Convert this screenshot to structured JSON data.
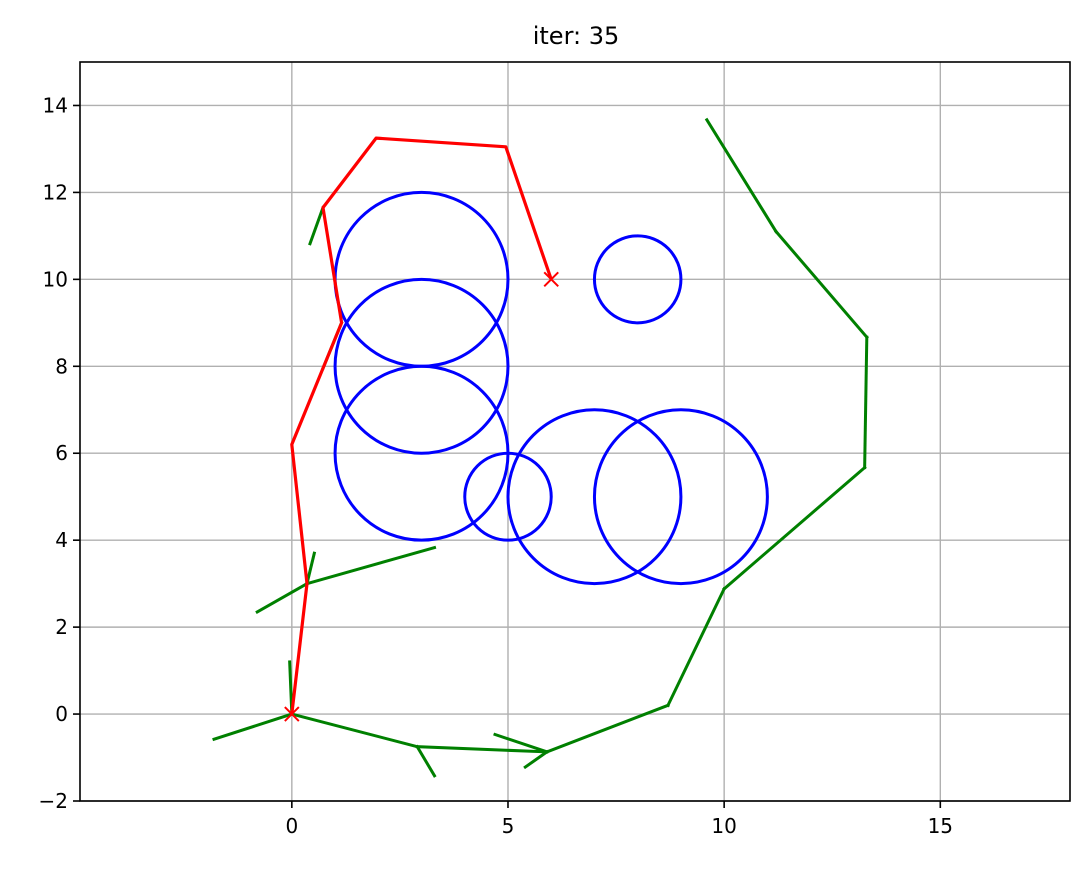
{
  "chart_data": {
    "type": "line",
    "title": "iter: 35",
    "xlabel": "",
    "ylabel": "",
    "xlim": [
      -4.9,
      18
    ],
    "ylim": [
      -2,
      15
    ],
    "xticks": [
      0,
      5,
      10,
      15
    ],
    "yticks": [
      -2,
      0,
      2,
      4,
      6,
      8,
      10,
      12,
      14
    ],
    "grid": true,
    "colors": {
      "obstacle": "#0000ff",
      "tree": "#008000",
      "path": "#ff0000",
      "marker": "#ff0000",
      "grid": "#b0b0b0"
    },
    "obstacles": [
      {
        "cx": 3,
        "cy": 10,
        "r": 2
      },
      {
        "cx": 3,
        "cy": 8,
        "r": 2
      },
      {
        "cx": 3,
        "cy": 6,
        "r": 2
      },
      {
        "cx": 5,
        "cy": 5,
        "r": 1
      },
      {
        "cx": 7,
        "cy": 5,
        "r": 2
      },
      {
        "cx": 9,
        "cy": 5,
        "r": 2
      },
      {
        "cx": 8,
        "cy": 10,
        "r": 1
      }
    ],
    "tree_edges": [
      [
        [
          0,
          0
        ],
        [
          -1.8,
          -0.58
        ]
      ],
      [
        [
          0,
          0
        ],
        [
          -0.05,
          1.2
        ]
      ],
      [
        [
          0,
          0
        ],
        [
          2.9,
          -0.75
        ]
      ],
      [
        [
          2.9,
          -0.75
        ],
        [
          3.3,
          -1.42
        ]
      ],
      [
        [
          2.9,
          -0.75
        ],
        [
          5.9,
          -0.87
        ]
      ],
      [
        [
          5.9,
          -0.87
        ],
        [
          4.7,
          -0.47
        ]
      ],
      [
        [
          5.9,
          -0.87
        ],
        [
          5.4,
          -1.22
        ]
      ],
      [
        [
          5.9,
          -0.87
        ],
        [
          8.7,
          0.2
        ]
      ],
      [
        [
          8.7,
          0.2
        ],
        [
          10,
          2.88
        ]
      ],
      [
        [
          10,
          2.88
        ],
        [
          13.25,
          5.67
        ]
      ],
      [
        [
          13.25,
          5.67
        ],
        [
          13.3,
          8.67
        ]
      ],
      [
        [
          13.3,
          8.67
        ],
        [
          11.2,
          11.1
        ]
      ],
      [
        [
          11.2,
          11.1
        ],
        [
          9.6,
          13.67
        ]
      ],
      [
        [
          0.35,
          3.0
        ],
        [
          -0.8,
          2.35
        ]
      ],
      [
        [
          0.35,
          3.0
        ],
        [
          3.3,
          3.83
        ]
      ],
      [
        [
          0.35,
          3.0
        ],
        [
          0.52,
          3.7
        ]
      ],
      [
        [
          1.15,
          9.0
        ],
        [
          0.72,
          7.95
        ]
      ],
      [
        [
          0.72,
          11.65
        ],
        [
          0.42,
          10.82
        ]
      ]
    ],
    "path": [
      [
        0,
        0
      ],
      [
        0.35,
        3.0
      ],
      [
        0,
        6.2
      ],
      [
        1.15,
        9.0
      ],
      [
        0.72,
        11.65
      ],
      [
        1.95,
        13.25
      ],
      [
        4.95,
        13.05
      ],
      [
        6,
        10
      ]
    ],
    "markers": [
      {
        "x": 0,
        "y": 0
      },
      {
        "x": 6,
        "y": 10
      }
    ]
  }
}
